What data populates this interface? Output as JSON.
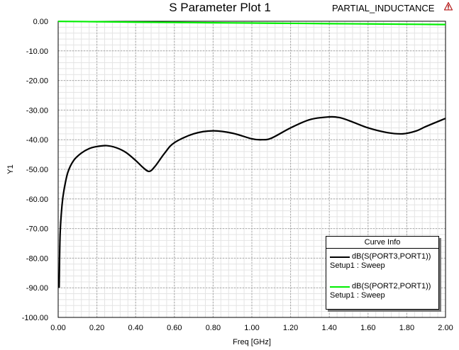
{
  "header": {
    "title": "S Parameter Plot 1",
    "project": "PARTIAL_INDUCTANCE"
  },
  "legend": {
    "title": "Curve Info",
    "entries": [
      {
        "name": "dB(S(PORT3,PORT1))",
        "setup": "Setup1 : Sweep",
        "color": "#000000"
      },
      {
        "name": "dB(S(PORT2,PORT1))",
        "setup": "Setup1 : Sweep",
        "color": "#00ee00"
      }
    ]
  },
  "chart_data": {
    "type": "line",
    "title": "S Parameter Plot 1",
    "xlabel": "Freq [GHz]",
    "ylabel": "Y1",
    "xlim": [
      0,
      2
    ],
    "ylim": [
      -100,
      0
    ],
    "x_ticks": [
      "0.00",
      "0.20",
      "0.40",
      "0.60",
      "0.80",
      "1.00",
      "1.20",
      "1.40",
      "1.60",
      "1.80",
      "2.00"
    ],
    "y_ticks": [
      "0.00",
      "-10.00",
      "-20.00",
      "-30.00",
      "-40.00",
      "-50.00",
      "-60.00",
      "-70.00",
      "-80.00",
      "-90.00",
      "-100.00"
    ],
    "grid": true,
    "series": [
      {
        "name": "dB(S(PORT3,PORT1))",
        "color": "#000000",
        "x": [
          0.005,
          0.01,
          0.02,
          0.03,
          0.05,
          0.08,
          0.12,
          0.16,
          0.2,
          0.25,
          0.3,
          0.35,
          0.4,
          0.44,
          0.47,
          0.5,
          0.55,
          0.6,
          0.7,
          0.8,
          0.9,
          1.0,
          1.05,
          1.1,
          1.2,
          1.3,
          1.4,
          1.45,
          1.5,
          1.6,
          1.7,
          1.78,
          1.85,
          1.9,
          2.0
        ],
        "y": [
          -90,
          -72,
          -62,
          -57,
          -51,
          -47,
          -44.5,
          -43,
          -42.3,
          -42,
          -42.7,
          -44.3,
          -47,
          -49.5,
          -50.7,
          -49,
          -44.5,
          -41,
          -38,
          -37,
          -37.8,
          -39.7,
          -40,
          -39.5,
          -36,
          -33.2,
          -32.3,
          -32.5,
          -33.5,
          -36,
          -37.6,
          -38,
          -37,
          -35.5,
          -32.8
        ]
      },
      {
        "name": "dB(S(PORT2,PORT1))",
        "color": "#00ee00",
        "x": [
          0.0,
          0.2,
          0.4,
          0.6,
          0.8,
          1.0,
          1.2,
          1.4,
          1.6,
          1.8,
          2.0
        ],
        "y": [
          -0.05,
          -0.15,
          -0.3,
          -0.4,
          -0.5,
          -0.6,
          -0.7,
          -0.8,
          -0.9,
          -1.0,
          -1.1
        ]
      }
    ]
  }
}
